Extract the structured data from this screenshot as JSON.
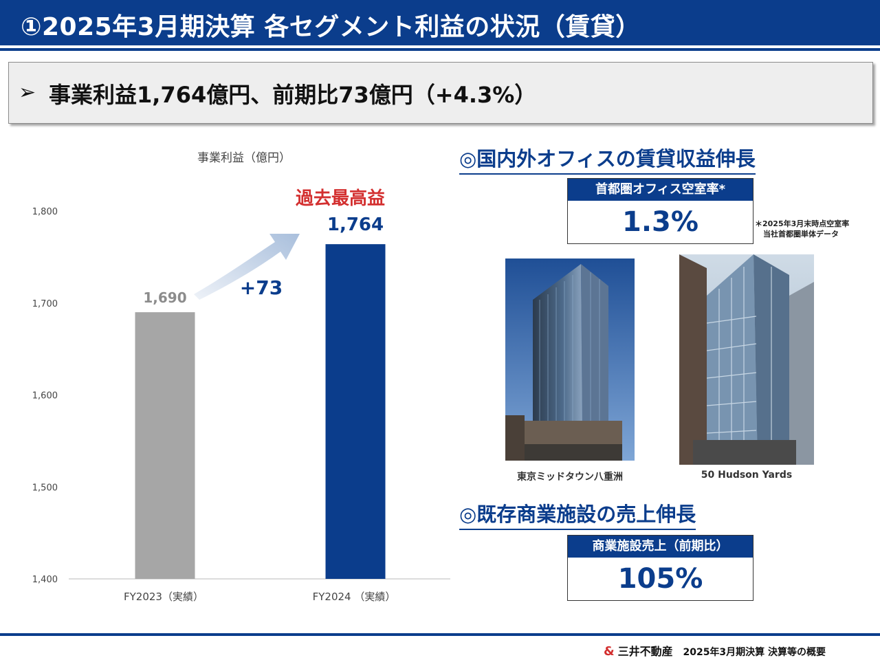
{
  "header": {
    "title": "①2025年3月期決算 各セグメント利益の状況（賃貸）"
  },
  "summary": {
    "bullet": "➢",
    "text": "事業利益1,764億円、前期比73億円（+4.3%）"
  },
  "chart_data": {
    "type": "bar",
    "title": "事業利益（億円）",
    "categories": [
      "FY2023（実績）",
      "FY2024 （実績）"
    ],
    "values": [
      1690,
      1764
    ],
    "value_labels": [
      "1,690",
      "1,764"
    ],
    "ylim": [
      1400,
      1800
    ],
    "yticks": [
      "1,400",
      "1,500",
      "1,600",
      "1,700",
      "1,800"
    ],
    "ytick_values": [
      1400,
      1500,
      1600,
      1700,
      1800
    ],
    "bar_colors": [
      "#a6a6a6",
      "#0b3d8c"
    ],
    "annotations": {
      "record": "過去最高益",
      "difference": "+73"
    }
  },
  "office": {
    "title": "◎国内外オフィスの賃貸収益伸長",
    "kpi_label": "首都圏オフィス空室率*",
    "kpi_value": "1.3%",
    "note_line1": "＊2025年3月末時点空室率",
    "note_line2": "当社首都圏単体データ",
    "photo1_caption": "東京ミッドタウン八重洲",
    "photo2_caption": "50 Hudson Yards"
  },
  "retail": {
    "title": "◎既存商業施設の売上伸長",
    "kpi_label": "商業施設売上（前期比）",
    "kpi_value": "105%"
  },
  "footer": {
    "logo": "&",
    "company": "三井不動産",
    "text": "2025年3月期決算 決算等の概要"
  }
}
